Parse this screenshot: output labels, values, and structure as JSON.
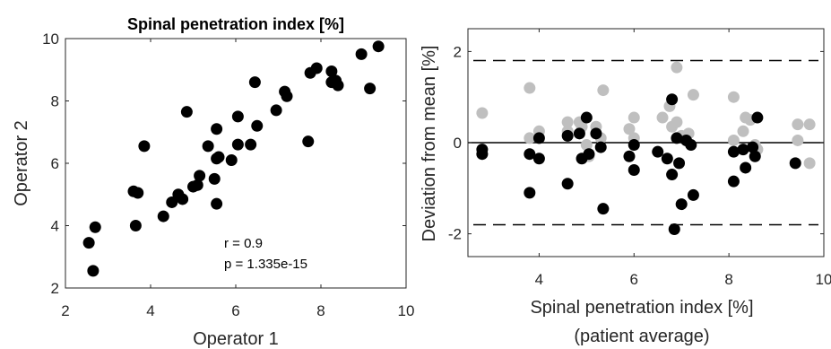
{
  "chart_data": [
    {
      "type": "scatter",
      "title": "Spinal penetration index [%]",
      "xlabel": "Operator 1",
      "ylabel": "Operator 2",
      "xlim": [
        2,
        10
      ],
      "ylim": [
        2,
        10
      ],
      "xticks": [
        "2",
        "4",
        "6",
        "8",
        "10"
      ],
      "yticks": [
        "2",
        "4",
        "6",
        "8",
        "10"
      ],
      "annotations": [
        "r = 0.9",
        "p = 1.335e-15"
      ],
      "point_color": "#000000",
      "points": [
        [
          2.55,
          3.45
        ],
        [
          2.7,
          3.95
        ],
        [
          2.65,
          2.55
        ],
        [
          3.6,
          5.1
        ],
        [
          3.7,
          5.05
        ],
        [
          3.65,
          4.0
        ],
        [
          3.85,
          6.55
        ],
        [
          4.3,
          4.3
        ],
        [
          4.5,
          4.75
        ],
        [
          4.65,
          5.0
        ],
        [
          4.75,
          4.85
        ],
        [
          4.85,
          7.65
        ],
        [
          5.0,
          5.25
        ],
        [
          5.1,
          5.3
        ],
        [
          5.15,
          5.6
        ],
        [
          5.35,
          6.55
        ],
        [
          5.5,
          5.5
        ],
        [
          5.55,
          7.1
        ],
        [
          5.55,
          6.15
        ],
        [
          5.55,
          4.7
        ],
        [
          5.6,
          6.2
        ],
        [
          5.9,
          6.1
        ],
        [
          6.05,
          7.5
        ],
        [
          6.05,
          6.6
        ],
        [
          6.35,
          6.6
        ],
        [
          6.45,
          8.6
        ],
        [
          6.5,
          7.2
        ],
        [
          6.95,
          7.7
        ],
        [
          7.15,
          8.3
        ],
        [
          7.2,
          8.15
        ],
        [
          7.7,
          6.7
        ],
        [
          7.75,
          8.9
        ],
        [
          7.9,
          9.05
        ],
        [
          8.25,
          8.95
        ],
        [
          8.25,
          8.6
        ],
        [
          8.35,
          8.65
        ],
        [
          8.4,
          8.5
        ],
        [
          8.95,
          9.5
        ],
        [
          9.15,
          8.4
        ],
        [
          9.35,
          9.75
        ]
      ]
    },
    {
      "type": "scatter",
      "title": "",
      "xlabel": "Spinal penetration index [%]",
      "xlabel2": "(patient average)",
      "ylabel": "Deviation from mean [%]",
      "xlim": [
        2.5,
        10
      ],
      "ylim": [
        -2.5,
        2.5
      ],
      "xticks": [
        "4",
        "6",
        "8",
        "10"
      ],
      "yticks": [
        "-2",
        "0",
        "2"
      ],
      "mean_line": 0,
      "limits_of_agreement": [
        1.8,
        -1.8
      ],
      "series": [
        {
          "color": "#000000",
          "points": [
            [
              2.8,
              -0.15
            ],
            [
              2.8,
              -0.25
            ],
            [
              3.8,
              -1.1
            ],
            [
              3.8,
              -0.25
            ],
            [
              4.0,
              -0.35
            ],
            [
              4.0,
              0.1
            ],
            [
              4.6,
              -0.9
            ],
            [
              4.6,
              0.15
            ],
            [
              4.85,
              0.2
            ],
            [
              4.9,
              -0.35
            ],
            [
              5.0,
              0.55
            ],
            [
              5.05,
              -0.25
            ],
            [
              5.2,
              0.2
            ],
            [
              5.3,
              -0.1
            ],
            [
              5.35,
              -1.45
            ],
            [
              5.9,
              -0.3
            ],
            [
              6.0,
              -0.6
            ],
            [
              6.0,
              -0.05
            ],
            [
              6.5,
              -0.2
            ],
            [
              6.7,
              -0.35
            ],
            [
              6.8,
              0.95
            ],
            [
              6.8,
              -0.7
            ],
            [
              6.85,
              -1.9
            ],
            [
              6.9,
              0.1
            ],
            [
              6.95,
              -0.45
            ],
            [
              7.0,
              -1.35
            ],
            [
              7.1,
              0.05
            ],
            [
              7.2,
              -0.05
            ],
            [
              7.25,
              -1.15
            ],
            [
              8.1,
              -0.2
            ],
            [
              8.1,
              -0.85
            ],
            [
              8.3,
              -0.15
            ],
            [
              8.35,
              -0.55
            ],
            [
              8.5,
              -0.1
            ],
            [
              8.55,
              -0.3
            ],
            [
              8.6,
              0.55
            ],
            [
              9.4,
              -0.45
            ]
          ]
        },
        {
          "color": "#bfbfbf",
          "points": [
            [
              2.8,
              0.65
            ],
            [
              2.8,
              -0.25
            ],
            [
              3.8,
              1.2
            ],
            [
              3.8,
              0.1
            ],
            [
              4.0,
              0.25
            ],
            [
              4.6,
              0.45
            ],
            [
              4.6,
              0.25
            ],
            [
              4.85,
              0.45
            ],
            [
              4.9,
              0.35
            ],
            [
              5.0,
              -0.05
            ],
            [
              5.05,
              -0.3
            ],
            [
              5.2,
              0.35
            ],
            [
              5.3,
              0.1
            ],
            [
              5.35,
              1.15
            ],
            [
              5.9,
              0.3
            ],
            [
              6.0,
              0.55
            ],
            [
              6.0,
              0.1
            ],
            [
              6.6,
              0.55
            ],
            [
              6.75,
              0.8
            ],
            [
              6.8,
              0.35
            ],
            [
              6.9,
              1.65
            ],
            [
              6.9,
              0.45
            ],
            [
              7.0,
              0.15
            ],
            [
              7.15,
              0.2
            ],
            [
              7.25,
              1.05
            ],
            [
              8.1,
              1.0
            ],
            [
              8.1,
              0.05
            ],
            [
              8.3,
              0.25
            ],
            [
              8.35,
              0.55
            ],
            [
              8.45,
              0.5
            ],
            [
              8.55,
              -0.05
            ],
            [
              8.6,
              -0.15
            ],
            [
              9.45,
              0.4
            ],
            [
              9.45,
              0.05
            ],
            [
              9.7,
              0.4
            ],
            [
              9.7,
              -0.45
            ]
          ]
        }
      ]
    }
  ]
}
